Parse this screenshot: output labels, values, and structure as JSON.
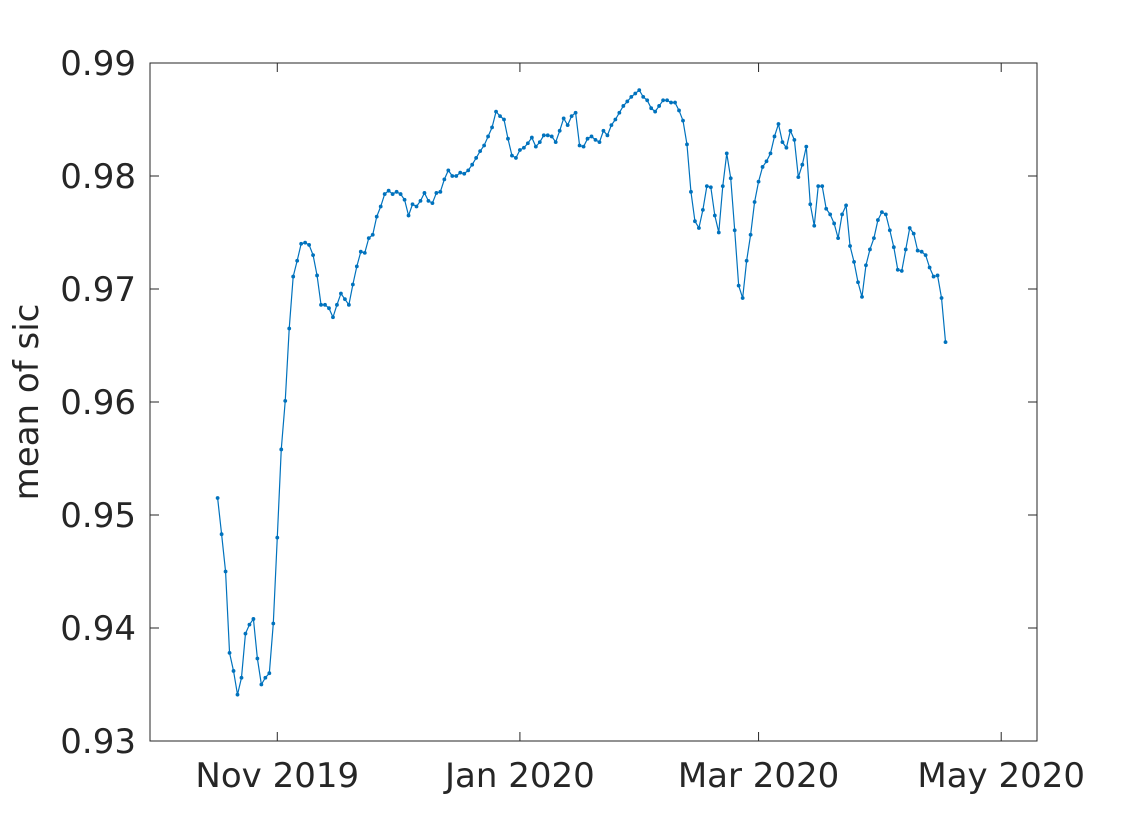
{
  "chart_data": {
    "type": "line",
    "title": "",
    "xlabel": "",
    "ylabel": "mean of sic",
    "ylim": [
      0.93,
      0.99
    ],
    "xlim": [
      "2019-09-30",
      "2020-05-10"
    ],
    "grid": false,
    "legend": "none",
    "line_color": "#0072BD",
    "marker": "point",
    "y_ticks": [
      0.93,
      0.94,
      0.95,
      0.96,
      0.97,
      0.98,
      0.99
    ],
    "y_tick_labels": [
      "0.93",
      "0.94",
      "0.95",
      "0.96",
      "0.97",
      "0.98",
      "0.99"
    ],
    "x_ticks": [
      "2019-11-01",
      "2020-01-01",
      "2020-03-01",
      "2020-05-01"
    ],
    "x_tick_labels": [
      "Nov 2019",
      "Jan 2020",
      "Mar 2020",
      "May 2020"
    ],
    "series": [
      {
        "start_date": "2019-10-17",
        "step_days": 1,
        "values": [
          0.9515,
          0.9483,
          0.945,
          0.9378,
          0.9362,
          0.9341,
          0.9356,
          0.9395,
          0.9403,
          0.9408,
          0.9373,
          0.935,
          0.9356,
          0.936,
          0.9404,
          0.948,
          0.9558,
          0.9601,
          0.9665,
          0.9711,
          0.9725,
          0.974,
          0.9741,
          0.9739,
          0.973,
          0.9712,
          0.9686,
          0.9686,
          0.9683,
          0.9675,
          0.9686,
          0.9696,
          0.9691,
          0.9686,
          0.9704,
          0.972,
          0.9733,
          0.9732,
          0.9745,
          0.9748,
          0.9764,
          0.9773,
          0.9784,
          0.9787,
          0.9784,
          0.9786,
          0.9784,
          0.9779,
          0.9765,
          0.9775,
          0.9773,
          0.9778,
          0.9785,
          0.9778,
          0.9776,
          0.9785,
          0.9786,
          0.9797,
          0.9805,
          0.98,
          0.98,
          0.9803,
          0.9802,
          0.9805,
          0.981,
          0.9816,
          0.9822,
          0.9827,
          0.9835,
          0.9843,
          0.9857,
          0.9853,
          0.985,
          0.9833,
          0.9818,
          0.9816,
          0.9823,
          0.9825,
          0.9829,
          0.9834,
          0.9826,
          0.983,
          0.9836,
          0.9836,
          0.9835,
          0.983,
          0.984,
          0.9851,
          0.9845,
          0.9853,
          0.9856,
          0.9827,
          0.9826,
          0.9833,
          0.9835,
          0.9832,
          0.983,
          0.984,
          0.9836,
          0.9845,
          0.985,
          0.9856,
          0.9862,
          0.9866,
          0.987,
          0.9873,
          0.9876,
          0.987,
          0.9867,
          0.986,
          0.9857,
          0.9862,
          0.9867,
          0.9867,
          0.9865,
          0.9865,
          0.9858,
          0.9849,
          0.9828,
          0.9786,
          0.976,
          0.9754,
          0.977,
          0.9791,
          0.979,
          0.9765,
          0.975,
          0.9791,
          0.982,
          0.9798,
          0.9752,
          0.9703,
          0.9692,
          0.9725,
          0.9748,
          0.9777,
          0.9795,
          0.9808,
          0.9813,
          0.982,
          0.9835,
          0.9846,
          0.983,
          0.9825,
          0.984,
          0.9832,
          0.9799,
          0.981,
          0.9826,
          0.9775,
          0.9756,
          0.9791,
          0.9791,
          0.9771,
          0.9766,
          0.9758,
          0.9745,
          0.9766,
          0.9774,
          0.9738,
          0.9724,
          0.9706,
          0.9693,
          0.9721,
          0.9735,
          0.9745,
          0.9761,
          0.9768,
          0.9766,
          0.9752,
          0.9737,
          0.9717,
          0.9716,
          0.9735,
          0.9754,
          0.9749,
          0.9734,
          0.9733,
          0.973,
          0.9719,
          0.9711,
          0.9712,
          0.9692,
          0.9653
        ]
      }
    ]
  }
}
